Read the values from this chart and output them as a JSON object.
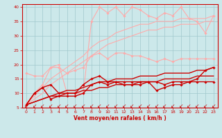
{
  "background_color": "#cce8ea",
  "grid_color": "#a0c8cc",
  "xlabel": "Vent moyen/en rafales ( km/h )",
  "xlabel_color": "#cc0000",
  "tick_color": "#cc0000",
  "xlim": [
    -0.5,
    23.5
  ],
  "ylim": [
    5,
    41
  ],
  "yticks": [
    5,
    10,
    15,
    20,
    25,
    30,
    35,
    40
  ],
  "xticks": [
    0,
    1,
    2,
    3,
    4,
    5,
    6,
    7,
    8,
    9,
    10,
    11,
    12,
    13,
    14,
    15,
    16,
    17,
    18,
    19,
    20,
    21,
    22,
    23
  ],
  "lines": [
    {
      "color": "#ffaaaa",
      "linewidth": 0.8,
      "marker": "D",
      "markersize": 1.8,
      "y": [
        17,
        16,
        16,
        19,
        19,
        17,
        18,
        19,
        23,
        24,
        22,
        24,
        24,
        23,
        23,
        22,
        21,
        22,
        21,
        22,
        22,
        22,
        22,
        22
      ]
    },
    {
      "color": "#ffaaaa",
      "linewidth": 0.8,
      "marker": null,
      "markersize": 0,
      "y": [
        6.5,
        9,
        12,
        15,
        17,
        19,
        21,
        23,
        26,
        28,
        29,
        31,
        32,
        33,
        34,
        34,
        35,
        35,
        35,
        36,
        36,
        36,
        36,
        37
      ]
    },
    {
      "color": "#ffaaaa",
      "linewidth": 0.8,
      "marker": null,
      "markersize": 0,
      "y": [
        6,
        8,
        10,
        13,
        15,
        17,
        19,
        21,
        23,
        25,
        27,
        28,
        29,
        30,
        31,
        32,
        32,
        33,
        33,
        34,
        34,
        34,
        35,
        35
      ]
    },
    {
      "color": "#ffaaaa",
      "linewidth": 0.8,
      "marker": "D",
      "markersize": 1.8,
      "y": [
        6,
        10,
        13,
        19,
        20,
        10,
        10,
        10,
        35,
        40,
        38,
        40,
        37,
        40,
        39,
        37,
        36,
        38,
        37,
        40,
        36,
        35,
        31,
        37
      ]
    },
    {
      "color": "#cc0000",
      "linewidth": 1.0,
      "marker": "D",
      "markersize": 1.8,
      "y": [
        6,
        10,
        12,
        13,
        10,
        10,
        10,
        13,
        15,
        16,
        14,
        14,
        14,
        14,
        14,
        14,
        14,
        13,
        14,
        14,
        14,
        14,
        14,
        14
      ]
    },
    {
      "color": "#cc0000",
      "linewidth": 1.0,
      "marker": null,
      "markersize": 0,
      "y": [
        6,
        7,
        8,
        9,
        10,
        11,
        11,
        12,
        13,
        14,
        14,
        15,
        15,
        15,
        16,
        16,
        16,
        17,
        17,
        17,
        17,
        18,
        18,
        19
      ]
    },
    {
      "color": "#cc0000",
      "linewidth": 1.0,
      "marker": null,
      "markersize": 0,
      "y": [
        6,
        7,
        8,
        9,
        9,
        10,
        10,
        11,
        11,
        12,
        12,
        13,
        13,
        13,
        14,
        14,
        14,
        15,
        15,
        15,
        15,
        16,
        16,
        16
      ]
    },
    {
      "color": "#cc0000",
      "linewidth": 1.0,
      "marker": "D",
      "markersize": 1.8,
      "y": [
        6,
        10,
        12,
        8,
        9,
        9,
        9,
        10,
        13,
        14,
        13,
        14,
        13,
        13,
        13,
        14,
        11,
        12,
        13,
        13,
        14,
        15,
        18,
        19
      ]
    }
  ],
  "arrow_char": "↙",
  "arrow_color": "#cc0000",
  "arrow_fontsize": 5.5
}
